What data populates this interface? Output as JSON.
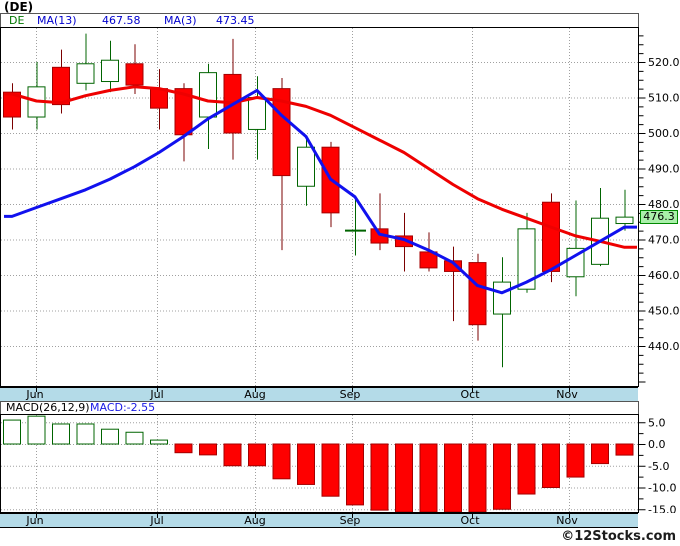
{
  "header": {
    "title": "(DE)"
  },
  "legend": {
    "symbol": "DE",
    "ma13_label": "MA(13)",
    "ma13_value": "467.58",
    "ma3_label": "MA(3)",
    "ma3_value": "473.45"
  },
  "months": [
    "Jun",
    "Jul",
    "Aug",
    "Sep",
    "Oct",
    "Nov"
  ],
  "price_axis": {
    "tick_labels": [
      "520.0",
      "510.0",
      "500.0",
      "490.0",
      "480.0",
      "470.0",
      "460.0",
      "450.0",
      "440.0"
    ],
    "last_price": "476.3"
  },
  "macd_header": {
    "label": "MACD(26,12,9)",
    "value_label": "MACD:-2.55"
  },
  "macd_axis": {
    "tick_labels": [
      "5.0",
      "0.0",
      "-5.0",
      "-10.0",
      "-15.0"
    ]
  },
  "footer": {
    "watermark": "©12Stocks.com"
  },
  "colors": {
    "up_fill": "#ffffff",
    "up_outline": "#006400",
    "up_wick": "#006400",
    "down_fill": "#fe0000",
    "down_outline": "#a40000",
    "down_wick": "#7b0000",
    "ma13": "#ee0000",
    "ma3": "#1111ee",
    "grid": "#a0a0a0",
    "strip_bg": "#b4dbe8",
    "last_price_bg": "#aaf0aa",
    "last_price_border": "#008800",
    "legend_symbol": "#007700",
    "legend_ma_text": "#0000cd",
    "macd_value_text": "#1a1ae6"
  },
  "chart_data": [
    {
      "type": "candlestick",
      "title": "(DE) weekly price",
      "months": [
        "Jun",
        "Jul",
        "Aug",
        "Sep",
        "Oct",
        "Nov"
      ],
      "ylim": [
        428,
        530
      ],
      "yticks": [
        520,
        510,
        500,
        490,
        480,
        470,
        460,
        450,
        440
      ],
      "grid": true,
      "last_price": 476.3,
      "candles": [
        {
          "o": 511.5,
          "h": 514.0,
          "l": 501.0,
          "c": 504.5
        },
        {
          "o": 504.5,
          "h": 520.0,
          "l": 501.0,
          "c": 513.0
        },
        {
          "o": 518.5,
          "h": 523.5,
          "l": 505.5,
          "c": 508.0
        },
        {
          "o": 514.0,
          "h": 528.0,
          "l": 512.0,
          "c": 519.5
        },
        {
          "o": 514.5,
          "h": 526.0,
          "l": 511.5,
          "c": 520.5
        },
        {
          "o": 519.5,
          "h": 525.0,
          "l": 511.0,
          "c": 513.5
        },
        {
          "o": 512.5,
          "h": 518.0,
          "l": 501.0,
          "c": 507.0
        },
        {
          "o": 512.5,
          "h": 514.0,
          "l": 492.0,
          "c": 499.5
        },
        {
          "o": 504.5,
          "h": 519.5,
          "l": 495.5,
          "c": 517.0
        },
        {
          "o": 516.5,
          "h": 526.5,
          "l": 492.5,
          "c": 500.0
        },
        {
          "o": 501.0,
          "h": 516.0,
          "l": 492.5,
          "c": 510.0
        },
        {
          "o": 512.5,
          "h": 515.5,
          "l": 467.0,
          "c": 488.0
        },
        {
          "o": 485.0,
          "h": 499.0,
          "l": 479.5,
          "c": 496.0
        },
        {
          "o": 496.0,
          "h": 497.5,
          "l": 473.5,
          "c": 477.5
        },
        {
          "o": 472.5,
          "h": 481.5,
          "l": 465.5,
          "c": 472.5
        },
        {
          "o": 473.0,
          "h": 483.0,
          "l": 467.0,
          "c": 469.0
        },
        {
          "o": 471.0,
          "h": 477.5,
          "l": 461.0,
          "c": 468.0
        },
        {
          "o": 466.5,
          "h": 472.0,
          "l": 461.0,
          "c": 462.0
        },
        {
          "o": 464.0,
          "h": 468.0,
          "l": 447.0,
          "c": 461.0
        },
        {
          "o": 463.5,
          "h": 466.0,
          "l": 441.5,
          "c": 446.0
        },
        {
          "o": 449.0,
          "h": 465.0,
          "l": 434.0,
          "c": 458.0
        },
        {
          "o": 456.0,
          "h": 477.5,
          "l": 455.0,
          "c": 473.0
        },
        {
          "o": 480.5,
          "h": 483.0,
          "l": 458.0,
          "c": 461.0
        },
        {
          "o": 459.5,
          "h": 481.0,
          "l": 454.0,
          "c": 467.5
        },
        {
          "o": 463.0,
          "h": 484.5,
          "l": 462.5,
          "c": 476.0
        },
        {
          "o": 474.5,
          "h": 484.0,
          "l": 472.5,
          "c": 476.3
        }
      ],
      "series": [
        {
          "name": "MA(13)",
          "value": 467.58,
          "color_key": "ma13",
          "values": [
            511,
            509,
            508.5,
            510.5,
            512,
            513,
            512.5,
            511,
            509,
            508.5,
            510,
            509,
            507.5,
            505,
            501.5,
            498,
            494.5,
            490,
            485.5,
            481.5,
            478.5,
            476,
            473.5,
            471,
            469.5,
            467.8
          ]
        },
        {
          "name": "MA(3)",
          "value": 473.45,
          "color_key": "ma3",
          "values": [
            476.5,
            479,
            481.5,
            484,
            487,
            490.5,
            494.5,
            499,
            504,
            508,
            512,
            505,
            499,
            487,
            482,
            471.5,
            470,
            467,
            463.5,
            457,
            455,
            458,
            461.5,
            465.5,
            469.5,
            473.5
          ]
        }
      ]
    },
    {
      "type": "bar",
      "title": "MACD(26,12,9)",
      "current": -2.55,
      "ylim": [
        -17,
        7
      ],
      "yticks": [
        5,
        0,
        -5,
        -10,
        -15
      ],
      "grid": true,
      "values": [
        5.5,
        6.4,
        4.6,
        4.6,
        3.4,
        2.7,
        0.9,
        -2.0,
        -2.5,
        -5.0,
        -5.0,
        -8.0,
        -9.3,
        -12.0,
        -14.0,
        -15.2,
        -15.8,
        -16.2,
        -15.8,
        -16.8,
        -15.0,
        -11.5,
        -10.0,
        -7.6,
        -4.5,
        -2.55
      ]
    }
  ]
}
